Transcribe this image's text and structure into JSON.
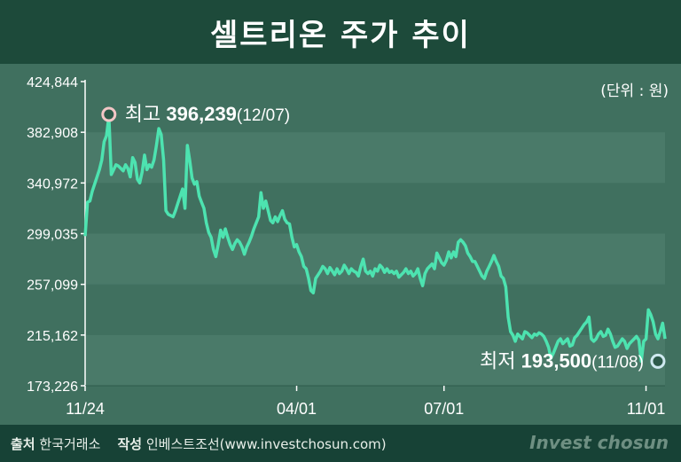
{
  "header": {
    "title": "셀트리온 주가 추이"
  },
  "unit_label": "(단위 : 원)",
  "footer": {
    "source_label": "출처",
    "source_value": "한국거래소",
    "author_label": "작성",
    "author_value": "인베스트조선(www.investchosun.com)",
    "brand": "Invest chosun"
  },
  "colors": {
    "line": "#4de3b0",
    "header_bg": "#1d4a3a",
    "plot_band": "#4a7a69"
  },
  "chart_data": {
    "type": "line",
    "title": "셀트리온 주가 추이",
    "ylim": [
      173226,
      424844
    ],
    "y_ticks": [
      "424,844",
      "382,908",
      "340,972",
      "299,035",
      "257,099",
      "215,162",
      "173,226"
    ],
    "y_tick_values": [
      424844,
      382908,
      340972,
      299035,
      257099,
      215162,
      173226
    ],
    "x_ticks": [
      {
        "label": "11/24",
        "index": 0
      },
      {
        "label": "04/01",
        "index": 89
      },
      {
        "label": "07/01",
        "index": 151
      },
      {
        "label": "11/01",
        "index": 236
      }
    ],
    "annotations": {
      "high": {
        "prefix": "최고",
        "value": "396,239",
        "date": "(12/07)",
        "index": 10,
        "y": 396239
      },
      "low": {
        "prefix": "최저",
        "value": "193,500",
        "date": "(11/08)",
        "index": 241,
        "y": 193500
      }
    },
    "series": [
      {
        "values": [
          297000,
          325000,
          326000,
          334000,
          340000,
          346000,
          352000,
          360000,
          375000,
          380000,
          396239,
          348000,
          352000,
          356000,
          355000,
          353000,
          351000,
          356000,
          353000,
          346000,
          362000,
          358000,
          344000,
          341000,
          350000,
          364000,
          352000,
          356000,
          354000,
          360000,
          372000,
          386000,
          381000,
          360000,
          318000,
          315000,
          314000,
          313000,
          318000,
          324000,
          330000,
          336000,
          320000,
          372000,
          360000,
          345000,
          340000,
          342000,
          330000,
          325000,
          320000,
          308000,
          300000,
          296000,
          286000,
          280000,
          290000,
          302000,
          296000,
          303000,
          296000,
          290000,
          286000,
          291000,
          294000,
          292000,
          288000,
          282000,
          288000,
          292000,
          297000,
          303000,
          308000,
          313000,
          333000,
          320000,
          326000,
          318000,
          310000,
          308000,
          313000,
          309000,
          314000,
          318000,
          311000,
          308000,
          307000,
          296000,
          288000,
          290000,
          284000,
          280000,
          272000,
          270000,
          262000,
          252000,
          250000,
          262000,
          265000,
          268000,
          272000,
          270000,
          266000,
          271000,
          268000,
          265000,
          270000,
          266000,
          268000,
          273000,
          270000,
          266000,
          270000,
          268000,
          267000,
          264000,
          272000,
          278000,
          268000,
          266000,
          268000,
          264000,
          270000,
          268000,
          273000,
          271000,
          267000,
          270000,
          267000,
          268000,
          266000,
          268000,
          263000,
          265000,
          267000,
          270000,
          266000,
          268000,
          264000,
          266000,
          270000,
          262000,
          256000,
          266000,
          270000,
          272000,
          274000,
          270000,
          283000,
          279000,
          275000,
          273000,
          277000,
          284000,
          279000,
          284000,
          280000,
          292000,
          294000,
          292000,
          289000,
          283000,
          280000,
          276000,
          276000,
          272000,
          268000,
          264000,
          262000,
          268000,
          272000,
          276000,
          281000,
          276000,
          272000,
          264000,
          262000,
          255000,
          230000,
          218000,
          215000,
          210000,
          216000,
          214000,
          212000,
          218000,
          217000,
          215000,
          213000,
          216000,
          215000,
          217000,
          216000,
          214000,
          210000,
          205000,
          196000,
          200000,
          205000,
          210000,
          212000,
          208000,
          210000,
          212000,
          206000,
          207000,
          213000,
          215000,
          218000,
          221000,
          224000,
          226000,
          230000,
          212000,
          210000,
          212000,
          216000,
          218000,
          214000,
          215000,
          220000,
          216000,
          210000,
          205000,
          206000,
          209000,
          212000,
          210000,
          204000,
          208000,
          210000,
          212000,
          214000,
          211000,
          193500,
          210000,
          212000,
          236000,
          232000,
          226000,
          216000,
          212000,
          218000,
          225000,
          212000
        ]
      }
    ]
  }
}
